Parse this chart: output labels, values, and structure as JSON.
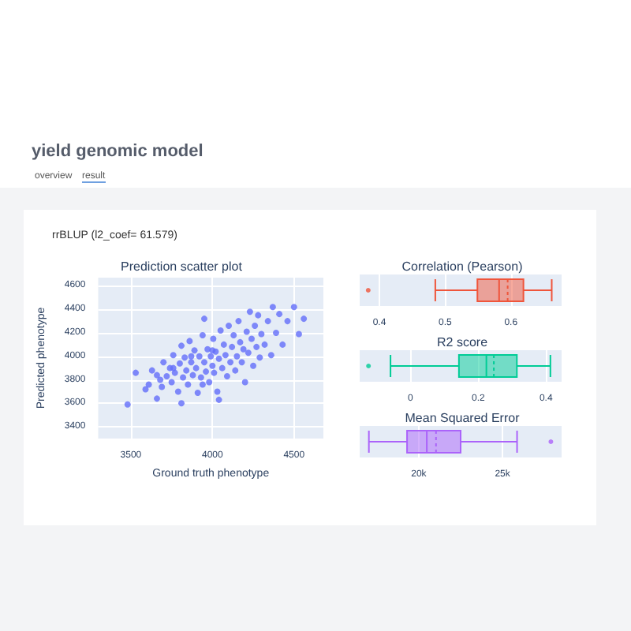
{
  "chart_data": [
    {
      "type": "scatter",
      "title": "Prediction scatter plot",
      "xlabel": "Ground truth phenotype",
      "ylabel": "Predicted phenotype",
      "annotations": [
        "yield genomic model",
        "overview",
        "result",
        "rrBLUP (l2_coef= 61.579)"
      ],
      "xlim": [
        3300,
        4680
      ],
      "xticks": [
        3500,
        4000,
        4500
      ],
      "ylim": [
        3300,
        4670
      ],
      "yticks": [
        3400,
        3600,
        3800,
        4000,
        4200,
        4400,
        4600
      ],
      "grid": true,
      "marker": "circle",
      "series": [
        {
          "color": "#636efa",
          "x": [
            3480,
            3530,
            3590,
            3610,
            3630,
            3660,
            3680,
            3690,
            3700,
            3720,
            3740,
            3750,
            3760,
            3770,
            3790,
            3800,
            3810,
            3810,
            3820,
            3830,
            3840,
            3850,
            3860,
            3870,
            3880,
            3890,
            3900,
            3910,
            3920,
            3930,
            3940,
            3950,
            3950,
            3960,
            3970,
            3980,
            3990,
            4000,
            4005,
            4010,
            4020,
            4030,
            4040,
            4040,
            4050,
            4060,
            4070,
            4080,
            4090,
            4100,
            4110,
            4120,
            4130,
            4140,
            4150,
            4160,
            4170,
            4180,
            4190,
            4200,
            4210,
            4220,
            4230,
            4240,
            4250,
            4260,
            4270,
            4280,
            4290,
            4300,
            4320,
            4340,
            4360,
            4370,
            4390,
            4410,
            4430,
            4460,
            4500,
            4530,
            4560,
            3870,
            3940,
            4000,
            3760,
            3660
          ],
          "values": [
            3590,
            3860,
            3720,
            3760,
            3880,
            3640,
            3800,
            3740,
            3950,
            3830,
            3900,
            3780,
            4010,
            3860,
            3700,
            3940,
            3600,
            4090,
            3820,
            3990,
            3880,
            3760,
            4130,
            3950,
            3840,
            4050,
            3900,
            3690,
            4000,
            3820,
            4180,
            3950,
            4320,
            3870,
            4060,
            3780,
            4000,
            3920,
            4150,
            3860,
            4040,
            3700,
            3630,
            3980,
            4220,
            3900,
            4100,
            4010,
            3830,
            4260,
            3950,
            4080,
            4180,
            3880,
            4000,
            4300,
            4120,
            3950,
            4060,
            3780,
            4210,
            4030,
            4380,
            4150,
            3920,
            4260,
            4080,
            4350,
            3990,
            4190,
            4100,
            4300,
            4010,
            4420,
            4200,
            4360,
            4100,
            4300,
            4420,
            4190,
            4320,
            4000,
            3760,
            4050,
            3900,
            3840
          ]
        }
      ]
    },
    {
      "type": "box",
      "title": "Correlation (Pearson)",
      "orientation": "horizontal",
      "categories": [
        null
      ],
      "xlim": [
        0.37,
        0.677
      ],
      "xticks": [
        0.4,
        0.5,
        0.6
      ],
      "grid": "x",
      "series": [
        {
          "color": "#ef553b",
          "boxes": [
            {
              "low": 0.485,
              "q1": 0.549,
              "median": 0.582,
              "q3": 0.619,
              "high": 0.662,
              "mean": 0.595,
              "outliers": [
                0.383
              ]
            }
          ]
        }
      ]
    },
    {
      "type": "box",
      "title": "R2 score",
      "orientation": "horizontal",
      "categories": [
        null
      ],
      "xlim": [
        -0.15,
        0.446
      ],
      "xticks": [
        0,
        0.2,
        0.4
      ],
      "grid": "x",
      "series": [
        {
          "color": "#00cc96",
          "boxes": [
            {
              "low": -0.059,
              "q1": 0.143,
              "median": 0.224,
              "q3": 0.314,
              "high": 0.413,
              "mean": 0.246,
              "outliers": [
                -0.124
              ]
            }
          ]
        }
      ]
    },
    {
      "type": "box",
      "title": "Mean Squared Error",
      "orientation": "horizontal",
      "categories": [
        null
      ],
      "xlim": [
        16470,
        28530
      ],
      "xticks": [
        {
          "value": 20000,
          "label": "20k"
        },
        {
          "value": 25000,
          "label": "25k"
        }
      ],
      "grid": "x",
      "series": [
        {
          "color": "#ab63fa",
          "boxes": [
            {
              "low": 17020,
              "q1": 19300,
              "median": 20480,
              "q3": 22500,
              "high": 25870,
              "mean": 21030,
              "outliers": [
                27890
              ]
            }
          ]
        }
      ]
    }
  ]
}
